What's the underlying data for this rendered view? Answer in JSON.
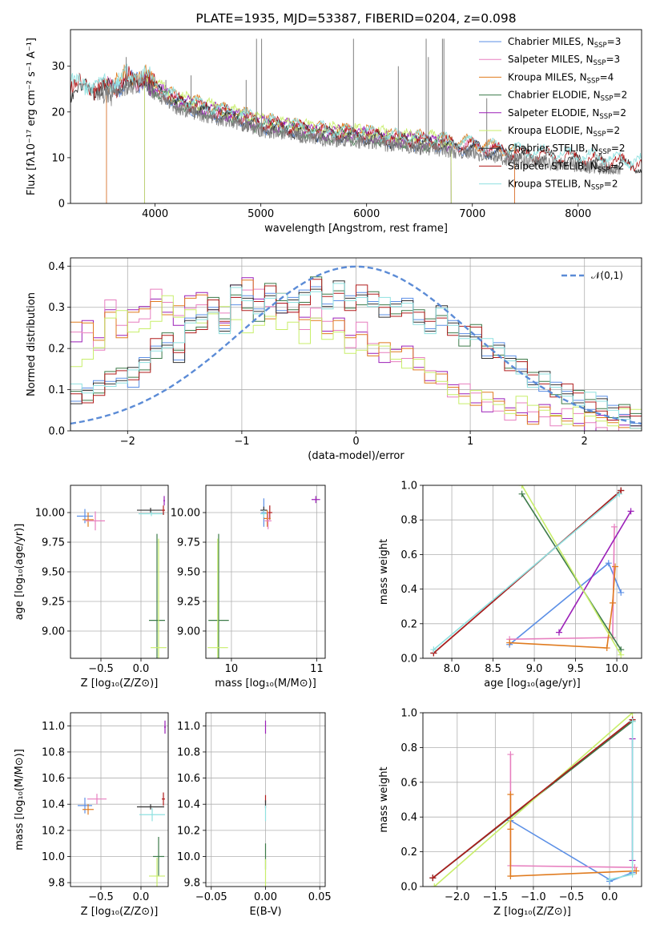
{
  "colors": {
    "Chabrier MILES": "#5b8fe6",
    "Salpeter MILES": "#e77fbf",
    "Kroupa MILES": "#e07b1f",
    "Chabrier ELODIE": "#3c7a49",
    "Salpeter ELODIE": "#9b1fb8",
    "Kroupa ELODIE": "#c8ee6a",
    "Chabrier STELIB": "#333333",
    "Salpeter STELIB": "#b11d1d",
    "Kroupa STELIB": "#8fe1e0",
    "data": "#808080",
    "normal": "#5b8bd6"
  },
  "chart_data": [
    {
      "type": "line",
      "title": "PLATE=1935, MJD=53387, FIBERID=0204, z=0.098",
      "xlabel": "wavelength [Angstrom, rest frame]",
      "ylabel": "Flux [fλ10⁻¹⁷ erg cm⁻² s⁻¹ A⁻¹]",
      "xlim": [
        3200,
        8600
      ],
      "ylim": [
        0,
        38
      ],
      "xticks": [
        4000,
        5000,
        6000,
        7000,
        8000
      ],
      "yticks": [
        0,
        10,
        20,
        30
      ],
      "grid": false,
      "legend_position": "top-right",
      "legend": [
        {
          "model": "Chabrier MILES",
          "label": "Chabrier MILES, N",
          "sub": "SSP",
          "tail": "=3"
        },
        {
          "model": "Salpeter MILES",
          "label": "Salpeter MILES, N",
          "sub": "SSP",
          "tail": "=3"
        },
        {
          "model": "Kroupa MILES",
          "label": "Kroupa MILES, N",
          "sub": "SSP",
          "tail": "=4"
        },
        {
          "model": "Chabrier ELODIE",
          "label": "Chabrier ELODIE, N",
          "sub": "SSP",
          "tail": "=2"
        },
        {
          "model": "Salpeter ELODIE",
          "label": "Salpeter ELODIE, N",
          "sub": "SSP",
          "tail": "=2"
        },
        {
          "model": "Kroupa ELODIE",
          "label": "Kroupa ELODIE, N",
          "sub": "SSP",
          "tail": "=2"
        },
        {
          "model": "Chabrier STELIB",
          "label": "Chabrier STELIB, N",
          "sub": "SSP",
          "tail": "=2"
        },
        {
          "model": "Salpeter STELIB",
          "label": "Salpeter STELIB, N",
          "sub": "SSP",
          "tail": "=2"
        },
        {
          "model": "Kroupa STELIB",
          "label": "Kroupa STELIB, N",
          "sub": "SSP",
          "tail": "=2"
        }
      ],
      "continuum_wavelength": [
        3530,
        3700,
        3900,
        4000,
        4200,
        4500,
        4800,
        5000,
        5300,
        5600,
        6000,
        6300,
        6600,
        7000,
        7400
      ],
      "continuum_flux": [
        25,
        26,
        27,
        25,
        22,
        20,
        18.5,
        17,
        16,
        15,
        14.5,
        13.5,
        13,
        12,
        10.5
      ],
      "emission_lines": [
        [
          3727,
          32
        ],
        [
          3869,
          29
        ],
        [
          4102,
          27
        ],
        [
          4340,
          28
        ],
        [
          4861,
          27
        ],
        [
          4959,
          36
        ],
        [
          5007,
          36
        ],
        [
          5876,
          36
        ],
        [
          6300,
          30
        ],
        [
          6563,
          36
        ],
        [
          6584,
          32
        ],
        [
          6717,
          36
        ],
        [
          6731,
          36
        ],
        [
          7136,
          23
        ]
      ],
      "series_range": {
        "Chabrier MILES": [
          3540,
          7400
        ],
        "Salpeter MILES": [
          3540,
          7400
        ],
        "Kroupa MILES": [
          3540,
          7400
        ],
        "Chabrier ELODIE": [
          3900,
          6800
        ],
        "Salpeter ELODIE": [
          3900,
          6800
        ],
        "Kroupa ELODIE": [
          3900,
          6800
        ],
        "Chabrier STELIB": [
          3200,
          8600
        ],
        "Salpeter STELIB": [
          3200,
          8600
        ],
        "Kroupa STELIB": [
          3200,
          8600
        ]
      }
    },
    {
      "type": "step",
      "xlabel": "(data-model)/error",
      "ylabel": "Normed distribution",
      "xlim": [
        -2.5,
        2.5
      ],
      "ylim": [
        0,
        0.42
      ],
      "xticks": [
        -2,
        -1,
        0,
        1,
        2
      ],
      "yticks": [
        0.0,
        0.1,
        0.2,
        0.3,
        0.4
      ],
      "grid": true,
      "legend_position": "top-right",
      "legend_label": "𝒩(0,1)",
      "normal": {
        "mean": 0,
        "sigma": 1
      },
      "histogram_groups": [
        {
          "models": [
            "Salpeter ELODIE",
            "Salpeter MILES",
            "Kroupa MILES"
          ],
          "shape": [
            0.24,
            0.25,
            0.22,
            0.3,
            0.25,
            0.27,
            0.29,
            0.32,
            0.3,
            0.28,
            0.31,
            0.33,
            0.3,
            0.28,
            0.33,
            0.36,
            0.32,
            0.29,
            0.31,
            0.3,
            0.27,
            0.28,
            0.26,
            0.25,
            0.22,
            0.24,
            0.2,
            0.19,
            0.18,
            0.2,
            0.16,
            0.14,
            0.12,
            0.1,
            0.09,
            0.08,
            0.07,
            0.06,
            0.05,
            0.05,
            0.04,
            0.04,
            0.03,
            0.03,
            0.03,
            0.02,
            0.02,
            0.02,
            0.02,
            0.03
          ]
        },
        {
          "models": [
            "Kroupa ELODIE"
          ],
          "shape": [
            0.15,
            0.18,
            0.22,
            0.25,
            0.28,
            0.24,
            0.26,
            0.29,
            0.31,
            0.27,
            0.3,
            0.28,
            0.26,
            0.29,
            0.27,
            0.25,
            0.28,
            0.26,
            0.24,
            0.27,
            0.23,
            0.25,
            0.21,
            0.24,
            0.2,
            0.22,
            0.19,
            0.2,
            0.18,
            0.17,
            0.15,
            0.13,
            0.12,
            0.1,
            0.09,
            0.08,
            0.07,
            0.07,
            0.06,
            0.06,
            0.05,
            0.05,
            0.05,
            0.04,
            0.04,
            0.03,
            0.03,
            0.03,
            0.03,
            0.04
          ]
        },
        {
          "models": [
            "Chabrier MILES",
            "Chabrier ELODIE",
            "Chabrier STELIB",
            "Salpeter STELIB",
            "Kroupa STELIB"
          ],
          "shape": [
            0.09,
            0.08,
            0.11,
            0.12,
            0.14,
            0.13,
            0.16,
            0.2,
            0.22,
            0.19,
            0.25,
            0.27,
            0.3,
            0.26,
            0.33,
            0.31,
            0.29,
            0.34,
            0.31,
            0.3,
            0.33,
            0.35,
            0.32,
            0.34,
            0.31,
            0.33,
            0.32,
            0.3,
            0.29,
            0.31,
            0.27,
            0.26,
            0.28,
            0.25,
            0.23,
            0.24,
            0.2,
            0.19,
            0.17,
            0.15,
            0.13,
            0.12,
            0.1,
            0.09,
            0.08,
            0.07,
            0.06,
            0.05,
            0.04,
            0.03
          ]
        }
      ]
    },
    {
      "type": "scatter",
      "xlabel": "Z [log₁₀(Z/Z⊙)]",
      "ylabel": "age  [log₁₀(age/yr)]",
      "xlim": [
        -0.88,
        0.34
      ],
      "ylim": [
        8.77,
        10.23
      ],
      "xticks": [
        -0.5,
        0.0
      ],
      "yticks": [
        9.0,
        9.25,
        9.5,
        9.75,
        10.0
      ],
      "grid": true,
      "points": [
        {
          "model": "Chabrier MILES",
          "x": -0.7,
          "y": 9.97,
          "ex": 0.1,
          "ey": 0.06
        },
        {
          "model": "Kroupa MILES",
          "x": -0.66,
          "y": 9.94,
          "ex": 0.07,
          "ey": 0.06
        },
        {
          "model": "Salpeter MILES",
          "x": -0.57,
          "y": 9.93,
          "ex": 0.12,
          "ey": 0.08
        },
        {
          "model": "Chabrier STELIB",
          "x": 0.12,
          "y": 10.02,
          "ex": 0.17,
          "ey": 0.02
        },
        {
          "model": "Kroupa STELIB",
          "x": 0.13,
          "y": 9.99,
          "ex": 0.16,
          "ey": 0.02
        },
        {
          "model": "Salpeter STELIB",
          "x": 0.28,
          "y": 10.02,
          "ex": 0.02,
          "ey": 0.04
        },
        {
          "model": "Salpeter ELODIE",
          "x": 0.29,
          "y": 10.1,
          "ex": 0.01,
          "ey": 0.04
        },
        {
          "model": "Chabrier ELODIE",
          "x": 0.2,
          "y": 9.09,
          "ex": 0.1,
          "ey": 0.73
        },
        {
          "model": "Kroupa ELODIE",
          "x": 0.22,
          "y": 8.86,
          "ex": 0.1,
          "ey": 0.92
        }
      ]
    },
    {
      "type": "scatter",
      "xlabel": "mass [log₁₀(M/M⊙)]",
      "ylabel": "",
      "xlim": [
        9.7,
        11.1
      ],
      "ylim": [
        8.77,
        10.23
      ],
      "xticks": [
        10,
        11
      ],
      "yticks": [
        9.0,
        9.25,
        9.5,
        9.75,
        10.0
      ],
      "grid": true,
      "points": [
        {
          "model": "Chabrier MILES",
          "x": 10.38,
          "y": 10.0,
          "ex": 0.03,
          "ey": 0.12
        },
        {
          "model": "Chabrier STELIB",
          "x": 10.38,
          "y": 10.02,
          "ex": 0.04,
          "ey": 0.03
        },
        {
          "model": "Kroupa STELIB",
          "x": 10.38,
          "y": 9.99,
          "ex": 0.04,
          "ey": 0.03
        },
        {
          "model": "Salpeter STELIB",
          "x": 10.45,
          "y": 10.0,
          "ex": 0.03,
          "ey": 0.06
        },
        {
          "model": "Kroupa MILES",
          "x": 10.42,
          "y": 9.95,
          "ex": 0.04,
          "ey": 0.07
        },
        {
          "model": "Salpeter MILES",
          "x": 10.43,
          "y": 9.93,
          "ex": 0.04,
          "ey": 0.07
        },
        {
          "model": "Salpeter ELODIE",
          "x": 10.99,
          "y": 10.11,
          "ex": 0.05,
          "ey": 0.03
        },
        {
          "model": "Chabrier ELODIE",
          "x": 9.85,
          "y": 9.09,
          "ex": 0.12,
          "ey": 0.73
        },
        {
          "model": "Kroupa ELODIE",
          "x": 9.84,
          "y": 8.86,
          "ex": 0.12,
          "ey": 0.92
        }
      ]
    },
    {
      "type": "line",
      "xlabel": "age  [log₁₀(age/yr)]",
      "ylabel": "mass weight",
      "xlim": [
        7.65,
        10.3
      ],
      "ylim": [
        0.0,
        1.0
      ],
      "xticks": [
        8.0,
        8.5,
        9.0,
        9.5,
        10.0
      ],
      "yticks": [
        0.0,
        0.2,
        0.4,
        0.6,
        0.8,
        1.0
      ],
      "grid": true,
      "series": [
        {
          "model": "Chabrier MILES",
          "x": [
            8.7,
            9.9,
            10.05
          ],
          "y": [
            0.08,
            0.55,
            0.38
          ]
        },
        {
          "model": "Salpeter MILES",
          "x": [
            8.7,
            9.95,
            9.97
          ],
          "y": [
            0.11,
            0.12,
            0.76
          ]
        },
        {
          "model": "Kroupa MILES",
          "x": [
            8.7,
            9.88,
            9.95,
            9.98
          ],
          "y": [
            0.09,
            0.06,
            0.32,
            0.53
          ]
        },
        {
          "model": "Chabrier ELODIE",
          "x": [
            8.85,
            10.05
          ],
          "y": [
            0.95,
            0.05
          ]
        },
        {
          "model": "Salpeter ELODIE",
          "x": [
            9.3,
            10.17
          ],
          "y": [
            0.15,
            0.85
          ]
        },
        {
          "model": "Kroupa ELODIE",
          "x": [
            8.85,
            10.05
          ],
          "y": [
            1.0,
            0.02
          ]
        },
        {
          "model": "Chabrier STELIB",
          "x": [
            7.78,
            10.05
          ],
          "y": [
            0.03,
            0.97
          ]
        },
        {
          "model": "Salpeter STELIB",
          "x": [
            7.78,
            10.05
          ],
          "y": [
            0.03,
            0.97
          ]
        },
        {
          "model": "Kroupa STELIB",
          "x": [
            7.78,
            10.03
          ],
          "y": [
            0.05,
            0.95
          ]
        }
      ]
    },
    {
      "type": "scatter",
      "xlabel": "Z [log₁₀(Z/Z⊙)]",
      "ylabel": "mass [log₁₀(M/M⊙)]",
      "xlim": [
        -0.88,
        0.34
      ],
      "ylim": [
        9.77,
        11.1
      ],
      "xticks": [
        -0.5,
        0.0
      ],
      "yticks": [
        9.8,
        10.0,
        10.2,
        10.4,
        10.6,
        10.8,
        11.0
      ],
      "grid": true,
      "points": [
        {
          "model": "Chabrier MILES",
          "x": -0.7,
          "y": 10.39,
          "ex": 0.09,
          "ey": 0.06
        },
        {
          "model": "Kroupa MILES",
          "x": -0.66,
          "y": 10.36,
          "ex": 0.07,
          "ey": 0.04
        },
        {
          "model": "Salpeter MILES",
          "x": -0.55,
          "y": 10.44,
          "ex": 0.12,
          "ey": 0.04
        },
        {
          "model": "Chabrier STELIB",
          "x": 0.12,
          "y": 10.38,
          "ex": 0.17,
          "ey": 0.02
        },
        {
          "model": "Kroupa STELIB",
          "x": 0.14,
          "y": 10.32,
          "ex": 0.16,
          "ey": 0.05
        },
        {
          "model": "Salpeter STELIB",
          "x": 0.28,
          "y": 10.44,
          "ex": 0.02,
          "ey": 0.05
        },
        {
          "model": "Salpeter ELODIE",
          "x": 0.3,
          "y": 10.99,
          "ex": 0.01,
          "ey": 0.05
        },
        {
          "model": "Chabrier ELODIE",
          "x": 0.22,
          "y": 10.0,
          "ex": 0.07,
          "ey": 0.15
        },
        {
          "model": "Kroupa ELODIE",
          "x": 0.2,
          "y": 9.85,
          "ex": 0.1,
          "ey": 0.14
        }
      ]
    },
    {
      "type": "scatter",
      "xlabel": "E(B-V)",
      "ylabel": "",
      "xlim": [
        -0.055,
        0.055
      ],
      "ylim": [
        9.77,
        11.1
      ],
      "xticks": [
        -0.05,
        0.0,
        0.05
      ],
      "yticks": [
        9.8,
        10.0,
        10.2,
        10.4,
        10.6,
        10.8,
        11.0
      ],
      "grid": true,
      "points": [
        {
          "model": "Salpeter ELODIE",
          "x": 0.0,
          "y": 10.99,
          "ex": 0.0,
          "ey": 0.05
        },
        {
          "model": "Salpeter STELIB",
          "x": 0.0,
          "y": 10.44,
          "ex": 0.0,
          "ey": 0.03
        },
        {
          "model": "Chabrier STELIB",
          "x": 0.0,
          "y": 10.4,
          "ex": 0.0,
          "ey": 0.03
        },
        {
          "model": "Kroupa STELIB",
          "x": 0.0,
          "y": 10.33,
          "ex": 0.0,
          "ey": 0.06
        },
        {
          "model": "Chabrier ELODIE",
          "x": 0.0,
          "y": 10.0,
          "ex": 0.0,
          "ey": 0.1
        },
        {
          "model": "Kroupa ELODIE",
          "x": 0.0,
          "y": 9.86,
          "ex": 0.0,
          "ey": 0.12
        }
      ]
    },
    {
      "type": "line",
      "xlabel": "Z [log₁₀(Z/Z⊙)]",
      "ylabel": "mass weight",
      "xlim": [
        -2.45,
        0.42
      ],
      "ylim": [
        0.0,
        1.0
      ],
      "xticks": [
        -2.0,
        -1.5,
        -1.0,
        -0.5,
        0.0
      ],
      "yticks": [
        0.0,
        0.2,
        0.4,
        0.6,
        0.8,
        1.0
      ],
      "grid": true,
      "series": [
        {
          "model": "Chabrier MILES",
          "x": [
            -1.3,
            0.0,
            0.0,
            0.3
          ],
          "y": [
            0.38,
            0.04,
            0.03,
            0.08
          ]
        },
        {
          "model": "Salpeter MILES",
          "x": [
            -1.3,
            -1.3,
            0.33
          ],
          "y": [
            0.76,
            0.12,
            0.11
          ]
        },
        {
          "model": "Kroupa MILES",
          "x": [
            -1.3,
            -1.3,
            -1.3,
            0.35
          ],
          "y": [
            0.53,
            0.33,
            0.06,
            0.09
          ]
        },
        {
          "model": "Chabrier ELODIE",
          "x": [
            -2.32,
            0.3
          ],
          "y": [
            0.05,
            0.95
          ]
        },
        {
          "model": "Salpeter ELODIE",
          "x": [
            0.3,
            0.3
          ],
          "y": [
            0.15,
            0.85
          ]
        },
        {
          "model": "Kroupa ELODIE",
          "x": [
            -2.3,
            0.3
          ],
          "y": [
            0.0,
            1.0
          ]
        },
        {
          "model": "Chabrier STELIB",
          "x": [
            -2.32,
            0.3
          ],
          "y": [
            0.05,
            0.96
          ]
        },
        {
          "model": "Salpeter STELIB",
          "x": [
            -2.32,
            0.3
          ],
          "y": [
            0.05,
            0.96
          ]
        },
        {
          "model": "Kroupa STELIB",
          "x": [
            0.0,
            0.3,
            0.3
          ],
          "y": [
            0.04,
            0.07,
            0.95
          ]
        }
      ]
    }
  ]
}
